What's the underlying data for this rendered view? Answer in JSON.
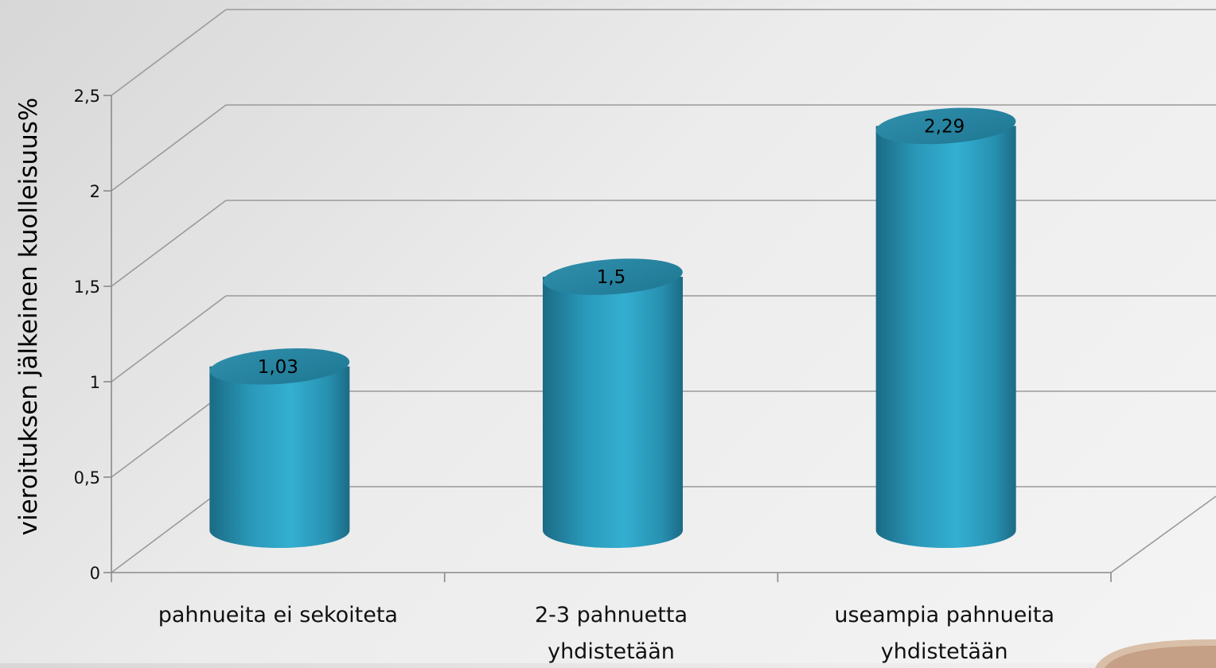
{
  "chart_data": {
    "type": "bar",
    "style": "3d-cylinder",
    "title": "",
    "xlabel": "",
    "ylabel": "vieroituksen jälkeinen kuolleisuus%",
    "categories": [
      [
        "pahnueita ei sekoiteta"
      ],
      [
        "2-3 pahnuetta",
        "yhdistetään"
      ],
      [
        "useampia pahnueita",
        "yhdistetään"
      ]
    ],
    "values": [
      1.03,
      1.5,
      2.29
    ],
    "data_labels": [
      "1,03",
      "1,5",
      "2,29"
    ],
    "ylim": [
      0,
      3
    ],
    "yticks": [
      0,
      0.5,
      1,
      1.5,
      2,
      2.5
    ],
    "ytick_labels": [
      "0",
      "0,5",
      "1",
      "1,5",
      "2",
      "2,5"
    ],
    "grid": true,
    "legend": "none",
    "colors": {
      "bar_light": "#34afd1",
      "bar_mid": "#2a99ba",
      "bar_dark": "#1b6b85",
      "bar_top": "#2a87a2",
      "grid": "#9a9a9a"
    }
  }
}
